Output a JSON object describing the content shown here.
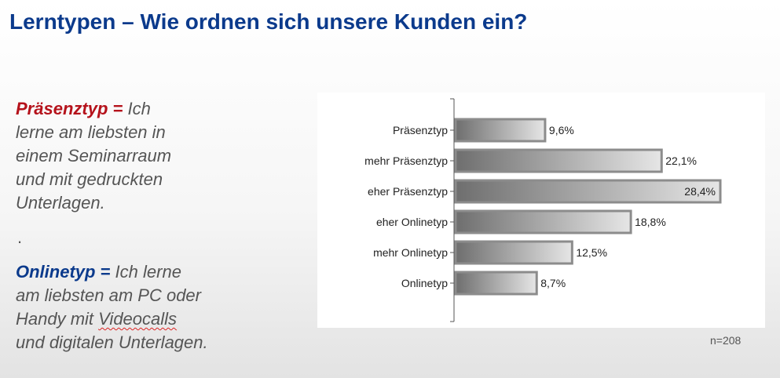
{
  "title": "Lerntypen – Wie ordnen sich unsere Kunden ein?",
  "left_text": {
    "block1": {
      "term": "Präsenztyp =",
      "lines": [
        "Ich",
        "lerne am liebsten in",
        "einem Seminarraum",
        "und mit gedruckten",
        "Unterlagen."
      ]
    },
    "separator": ".",
    "block2": {
      "term": "Onlinetyp =",
      "lines": [
        "Ich lerne",
        "am liebsten am PC oder",
        "Handy mit ",
        "Videocalls",
        "und digitalen Unterlagen."
      ]
    }
  },
  "sample_size": "n=208",
  "colors": {
    "title": "#0b3a8c",
    "term_red": "#b5121b",
    "term_blue": "#0b3a8c",
    "bar_dark": "#6e6e6e",
    "bar_light": "#e6e6e6",
    "bar_border": "#8c8c8c"
  },
  "chart_data": {
    "type": "bar",
    "orientation": "horizontal",
    "categories": [
      "Präsenztyp",
      "mehr Präsenztyp",
      "eher Präsenztyp",
      "eher Onlinetyp",
      "mehr Onlinetyp",
      "Onlinetyp"
    ],
    "values": [
      9.6,
      22.1,
      28.4,
      18.8,
      12.5,
      8.7
    ],
    "labels": [
      "9,6%",
      "22,1%",
      "28,4%",
      "18,8%",
      "12,5%",
      "8,7%"
    ],
    "unit": "%",
    "xlim": [
      0,
      30
    ],
    "grid": false,
    "legend": "none"
  }
}
